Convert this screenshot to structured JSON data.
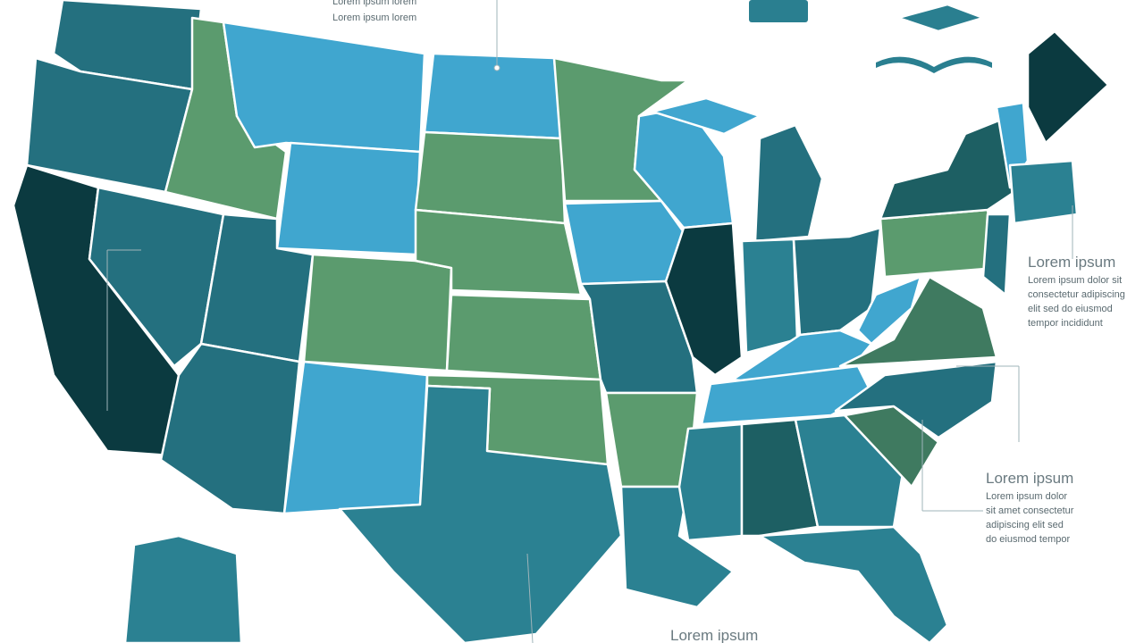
{
  "top_labels": [
    "Lorem ipsum lorem",
    "Lorem ipsum lorem"
  ],
  "callouts": [
    {
      "title": "Lorem ipsum",
      "lines": [
        "Lorem ipsum dolor sit",
        "consectetur adipiscing",
        "elit sed do eiusmod",
        "tempor incididunt"
      ]
    },
    {
      "title": "Lorem ipsum",
      "lines": [
        "Lorem ipsum dolor",
        "sit amet consectetur",
        "adipiscing elit sed",
        "do eiusmod tempor"
      ]
    }
  ],
  "bottom_label": "Lorem ipsum"
}
